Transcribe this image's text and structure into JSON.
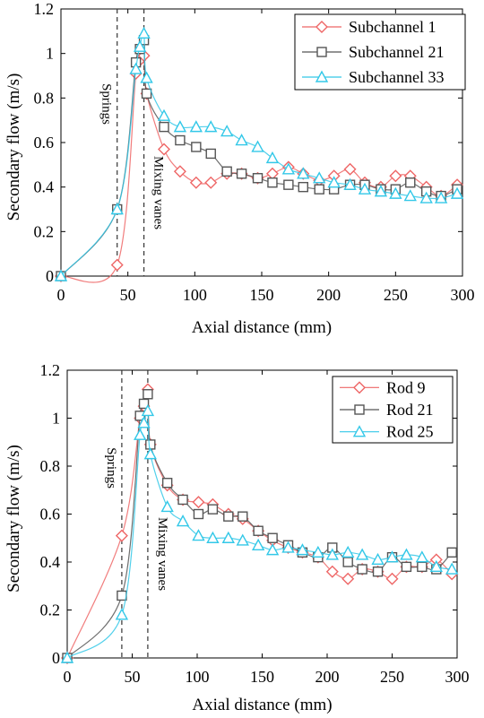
{
  "chart_data": [
    {
      "type": "line",
      "title": "",
      "xlabel": "Axial distance (mm)",
      "ylabel": "Secondary flow (m/s)",
      "xlim": [
        0,
        300
      ],
      "ylim": [
        0,
        1.2
      ],
      "x_ticks": [
        0,
        50,
        100,
        150,
        200,
        250,
        300
      ],
      "y_ticks": [
        0,
        0.2,
        0.4,
        0.6,
        0.8,
        1,
        1.2
      ],
      "grid": false,
      "legend_position": "top-right",
      "annotations": [
        {
          "text": "Springs",
          "x": 42
        },
        {
          "text": "Mixing vanes",
          "x": 62
        }
      ],
      "series": [
        {
          "name": "Subchannel 1",
          "marker": "diamond",
          "color": "#ee6666",
          "x": [
            0,
            42,
            56,
            59,
            62,
            64,
            77,
            89,
            101,
            112,
            124,
            135,
            147,
            158,
            170,
            181,
            193,
            204,
            216,
            227,
            239,
            250,
            261,
            273,
            284,
            296
          ],
          "y": [
            0.0,
            0.05,
            0.91,
            0.97,
            0.99,
            0.82,
            0.57,
            0.47,
            0.42,
            0.42,
            0.46,
            0.46,
            0.44,
            0.46,
            0.49,
            0.46,
            0.43,
            0.45,
            0.48,
            0.42,
            0.4,
            0.45,
            0.45,
            0.4,
            0.36,
            0.41
          ]
        },
        {
          "name": "Subchannel 21",
          "marker": "square",
          "color": "#555555",
          "x": [
            0,
            42,
            56,
            59,
            62,
            64,
            77,
            89,
            101,
            112,
            124,
            135,
            147,
            158,
            170,
            181,
            193,
            204,
            216,
            227,
            239,
            250,
            261,
            273,
            284,
            296
          ],
          "y": [
            0.0,
            0.3,
            0.96,
            1.02,
            1.06,
            0.82,
            0.67,
            0.61,
            0.58,
            0.55,
            0.47,
            0.46,
            0.44,
            0.42,
            0.41,
            0.4,
            0.39,
            0.39,
            0.41,
            0.41,
            0.39,
            0.39,
            0.42,
            0.38,
            0.36,
            0.39
          ]
        },
        {
          "name": "Subchannel 33",
          "marker": "triangle",
          "color": "#33c8e8",
          "x": [
            0,
            42,
            56,
            59,
            62,
            64,
            77,
            89,
            101,
            112,
            124,
            135,
            147,
            158,
            170,
            181,
            193,
            204,
            216,
            227,
            239,
            250,
            261,
            273,
            284,
            296
          ],
          "y": [
            0.0,
            0.3,
            0.93,
            1.03,
            1.09,
            0.89,
            0.72,
            0.67,
            0.67,
            0.67,
            0.65,
            0.61,
            0.58,
            0.53,
            0.48,
            0.46,
            0.44,
            0.42,
            0.41,
            0.39,
            0.38,
            0.37,
            0.36,
            0.35,
            0.35,
            0.37
          ]
        }
      ]
    },
    {
      "type": "line",
      "title": "",
      "xlabel": "Axial distance (mm)",
      "ylabel": "Secondary flow (m/s)",
      "xlim": [
        0,
        300
      ],
      "ylim": [
        0,
        1.2
      ],
      "x_ticks": [
        0,
        50,
        100,
        150,
        200,
        250,
        300
      ],
      "y_ticks": [
        0,
        0.2,
        0.4,
        0.6,
        0.8,
        1,
        1.2
      ],
      "grid": false,
      "legend_position": "top-right",
      "annotations": [
        {
          "text": "Springs",
          "x": 42
        },
        {
          "text": "Mixing vanes",
          "x": 62
        }
      ],
      "series": [
        {
          "name": "Rod 9",
          "marker": "diamond",
          "color": "#ee6666",
          "x": [
            0,
            42,
            56,
            59,
            62,
            64,
            77,
            89,
            101,
            112,
            124,
            135,
            147,
            158,
            170,
            181,
            193,
            204,
            216,
            227,
            239,
            250,
            261,
            273,
            284,
            296
          ],
          "y": [
            0.0,
            0.51,
            1.0,
            1.05,
            1.12,
            0.89,
            0.72,
            0.66,
            0.65,
            0.64,
            0.6,
            0.58,
            0.53,
            0.49,
            0.46,
            0.44,
            0.42,
            0.36,
            0.33,
            0.37,
            0.36,
            0.33,
            0.38,
            0.38,
            0.41,
            0.35
          ]
        },
        {
          "name": "Rod 21",
          "marker": "square",
          "color": "#555555",
          "x": [
            0,
            42,
            56,
            59,
            62,
            64,
            77,
            89,
            101,
            112,
            124,
            135,
            147,
            158,
            170,
            181,
            193,
            204,
            216,
            227,
            239,
            250,
            261,
            273,
            284,
            296
          ],
          "y": [
            0.0,
            0.26,
            1.01,
            1.06,
            1.1,
            0.89,
            0.73,
            0.66,
            0.6,
            0.62,
            0.59,
            0.59,
            0.53,
            0.5,
            0.47,
            0.44,
            0.42,
            0.46,
            0.4,
            0.37,
            0.36,
            0.42,
            0.38,
            0.38,
            0.37,
            0.44
          ]
        },
        {
          "name": "Rod 25",
          "marker": "triangle",
          "color": "#33c8e8",
          "x": [
            0,
            42,
            56,
            59,
            62,
            64,
            77,
            89,
            101,
            112,
            124,
            135,
            147,
            158,
            170,
            181,
            193,
            204,
            216,
            227,
            239,
            250,
            261,
            273,
            284,
            296
          ],
          "y": [
            0.0,
            0.18,
            0.93,
            0.98,
            1.03,
            0.85,
            0.63,
            0.57,
            0.51,
            0.5,
            0.5,
            0.49,
            0.47,
            0.45,
            0.46,
            0.45,
            0.44,
            0.43,
            0.44,
            0.43,
            0.41,
            0.42,
            0.43,
            0.42,
            0.38,
            0.37
          ]
        }
      ]
    }
  ]
}
